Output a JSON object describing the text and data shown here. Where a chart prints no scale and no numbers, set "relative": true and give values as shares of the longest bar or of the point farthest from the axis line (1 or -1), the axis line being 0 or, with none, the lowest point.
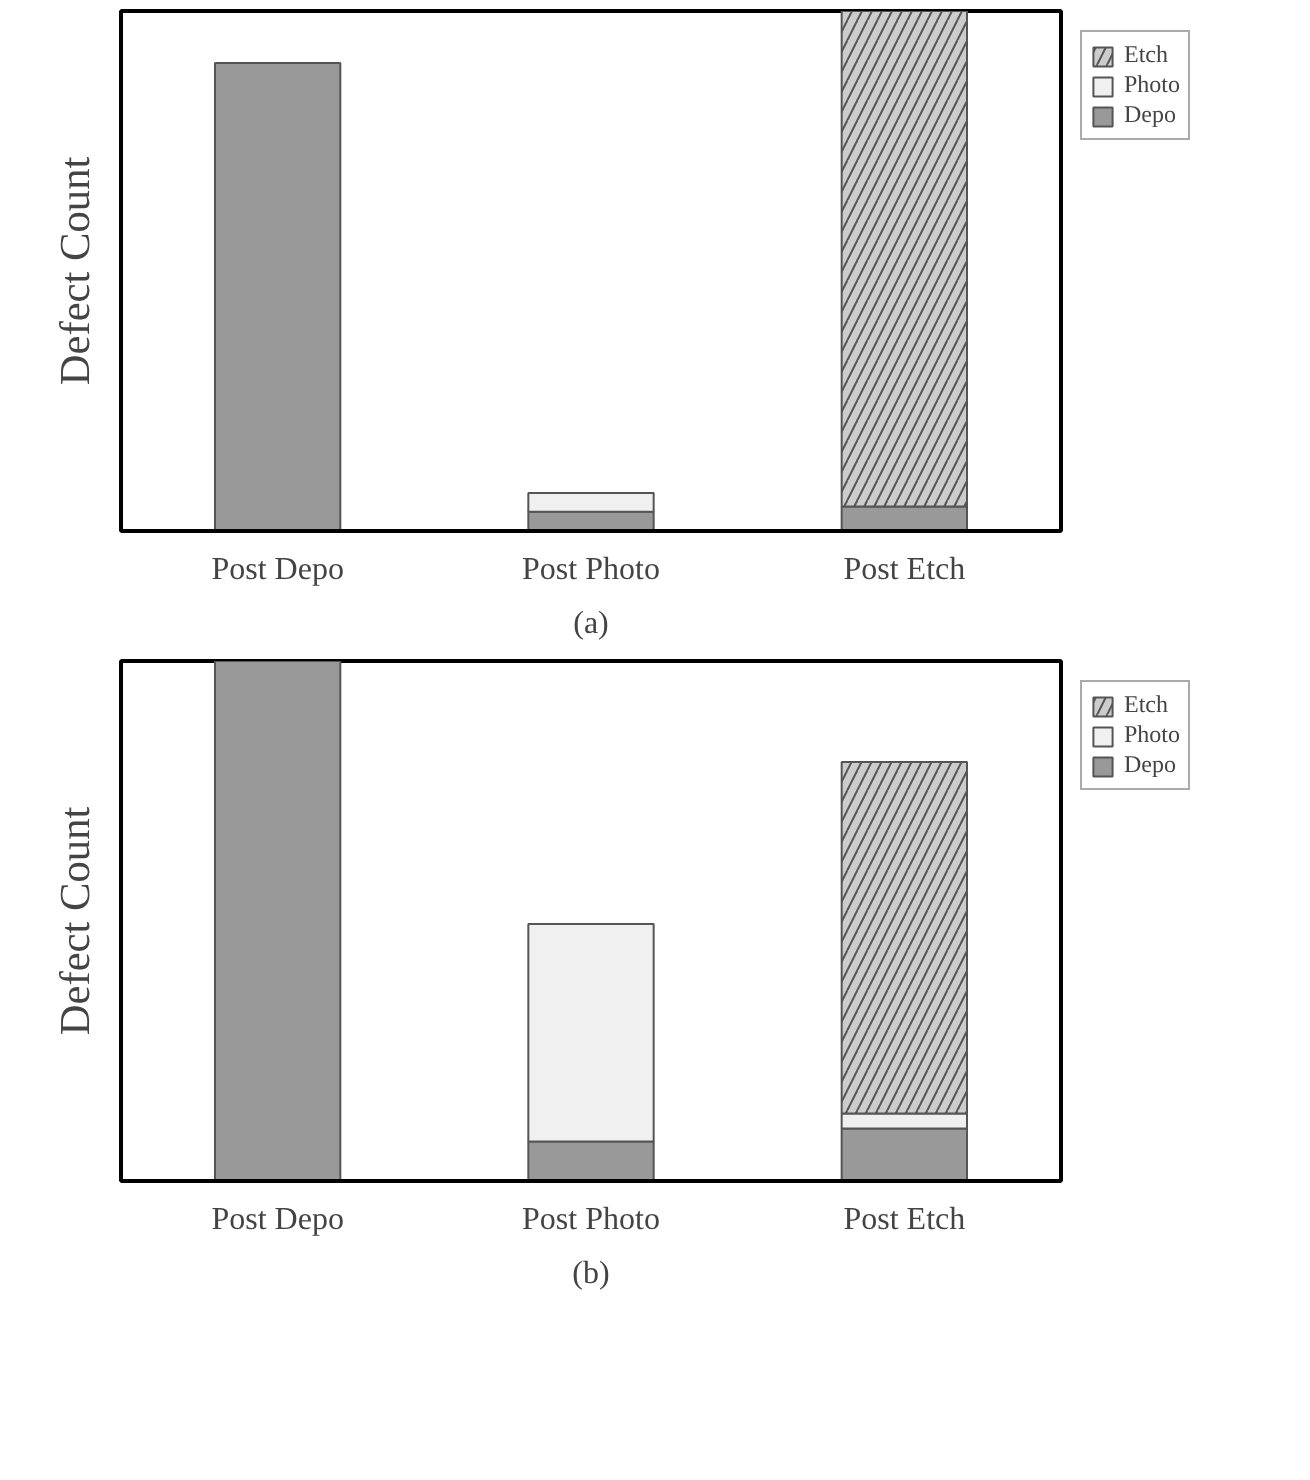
{
  "chart_data": [
    {
      "type": "bar",
      "stacked": true,
      "relative": true,
      "ylabel": "Defect Count",
      "legend": "right",
      "annotations": [
        "(a)"
      ],
      "categories": [
        "Post Depo",
        "Post Photo",
        "Post Etch"
      ],
      "series": [
        {
          "name": "Depo",
          "color": "#999999",
          "values": [
            0.9,
            0.037,
            0.047
          ]
        },
        {
          "name": "Photo",
          "color": "#f0f0f0",
          "values": [
            null,
            0.036,
            null
          ]
        },
        {
          "name": "Etch",
          "color": "#cccccc",
          "values": [
            null,
            null,
            0.953
          ]
        }
      ]
    },
    {
      "type": "bar",
      "stacked": true,
      "relative": true,
      "ylabel": "Defect Count",
      "legend": "right",
      "annotations": [
        "(b)"
      ],
      "categories": [
        "Post Depo",
        "Post Photo",
        "Post Etch"
      ],
      "series": [
        {
          "name": "Depo",
          "color": "#999999",
          "values": [
            1,
            0.076,
            0.101
          ]
        },
        {
          "name": "Photo",
          "color": "#f0f0f0",
          "values": [
            null,
            0.418,
            0.029
          ]
        },
        {
          "name": "Etch",
          "color": "#cccccc",
          "values": [
            null,
            null,
            0.676
          ]
        }
      ]
    }
  ]
}
